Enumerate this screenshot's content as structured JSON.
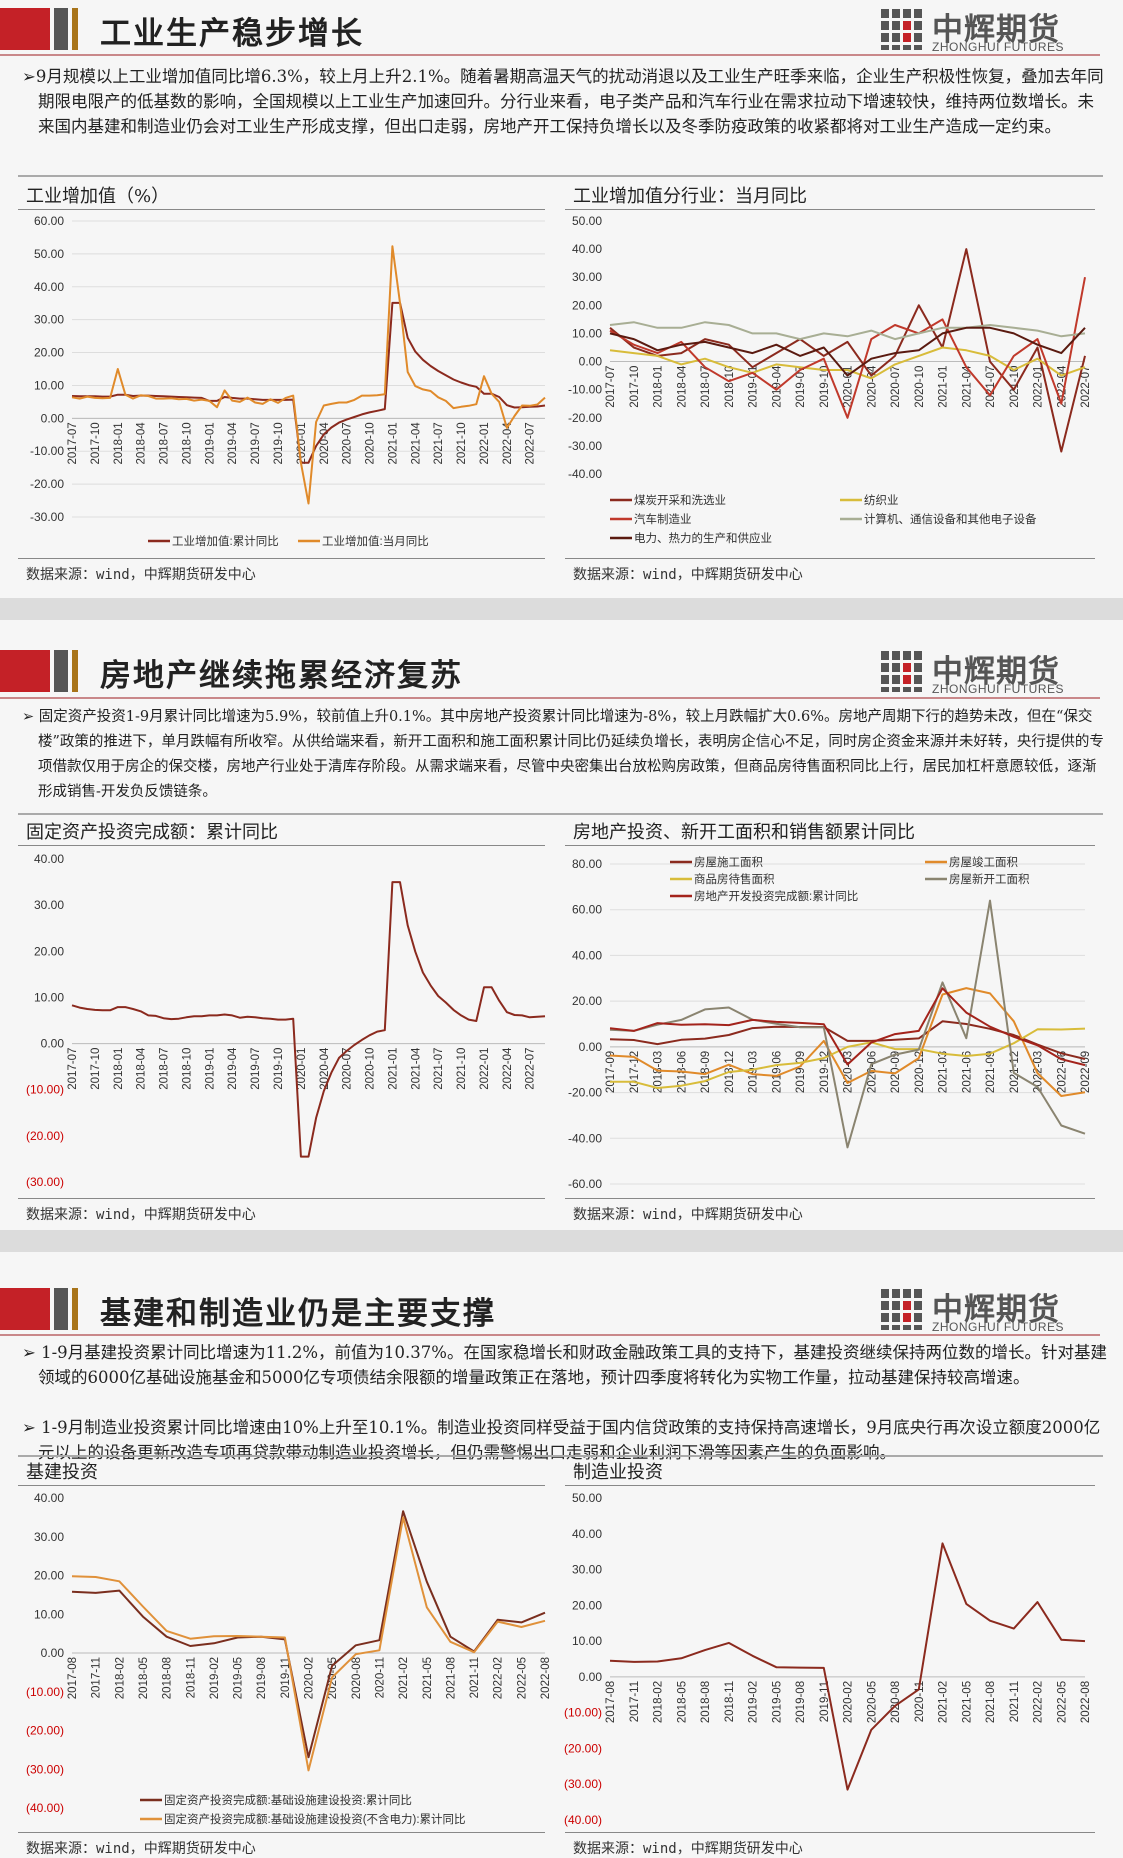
{
  "logo": {
    "cn": "中辉期货",
    "en": "ZHONGHUI FUTURES"
  },
  "footer_source": "数据来源：wind，中辉期货研发中心",
  "sections": [
    {
      "title": "工业生产稳步增长",
      "paragraphs": [
        "➢9月规模以上工业增加值同比增6.3%，较上月上升2.1%。随着暑期高温天气的扰动消退以及工业生产旺季来临，企业生产积极性恢复，叠加去年同期限电限产的低基数的影响，全国规模以上工业生产加速回升。分行业来看，电子类产品和汽车行业在需求拉动下增速较快，维持两位数增长。未来国内基建和制造业仍会对工业生产形成支撑，但出口走弱，房地产开工保持负增长以及冬季防疫政策的收紧都将对工业生产造成一定约束。"
      ]
    },
    {
      "title": "房地产继续拖累经济复苏",
      "paragraphs": [
        "➢ 固定资产投资1-9月累计同比增速为5.9%，较前值上升0.1%。其中房地产投资累计同比增速为-8%，较上月跌幅扩大0.6%。房地产周期下行的趋势未改，但在“保交楼”政策的推进下，单月跌幅有所收窄。从供给端来看，新开工面积和施工面积累计同比仍延续负增长，表明房企信心不足，同时房企资金来源并未好转，央行提供的专项借款仅用于房企的保交楼，房地产行业处于清库存阶段。从需求端来看，尽管中央密集出台放松购房政策，但商品房待售面积同比上行，居民加杠杆意愿较低，逐渐形成销售-开发负反馈链条。"
      ]
    },
    {
      "title": "基建和制造业仍是主要支撑",
      "paragraphs": [
        "➢ 1-9月基建投资累计同比增速为11.2%，前值为10.37%。在国家稳增长和财政金融政策工具的支持下，基建投资继续保持两位数的增长。针对基建领域的6000亿基础设施基金和5000亿专项债结余限额的增量政策正在落地，预计四季度将转化为实物工作量，拉动基建保持较高增速。",
        "➢ 1-9月制造业投资累计同比增速由10%上升至10.1%。制造业投资同样受益于国内信贷政策的支持保持高速增长，9月底央行再次设立额度2000亿元以上的设备更新改造专项再贷款带动制造业投资增长，但仍需警惕出口走弱和企业利润下滑等因素产生的负面影响。"
      ]
    }
  ],
  "chart_data": [
    {
      "id": "c1",
      "type": "line",
      "title": "工业增加值（%）",
      "ylim": [
        -30,
        60
      ],
      "ystep": 10,
      "neg_style": "minus",
      "grid": true,
      "legend": "bottom",
      "x": [
        "2017-07",
        "2017-08",
        "2017-09",
        "2017-10",
        "2017-11",
        "2017-12",
        "2018-01",
        "2018-02",
        "2018-03",
        "2018-04",
        "2018-05",
        "2018-06",
        "2018-07",
        "2018-08",
        "2018-09",
        "2018-10",
        "2018-11",
        "2018-12",
        "2019-01",
        "2019-02",
        "2019-03",
        "2019-04",
        "2019-05",
        "2019-06",
        "2019-07",
        "2019-08",
        "2019-09",
        "2019-10",
        "2019-11",
        "2019-12",
        "2020-01",
        "2020-02",
        "2020-03",
        "2020-04",
        "2020-05",
        "2020-06",
        "2020-07",
        "2020-08",
        "2020-09",
        "2020-10",
        "2020-11",
        "2020-12",
        "2021-01",
        "2021-02",
        "2021-03",
        "2021-04",
        "2021-05",
        "2021-06",
        "2021-07",
        "2021-08",
        "2021-09",
        "2021-10",
        "2021-11",
        "2021-12",
        "2022-01",
        "2022-02",
        "2022-03",
        "2022-04",
        "2022-05",
        "2022-06",
        "2022-07",
        "2022-08",
        "2022-09"
      ],
      "tick_every": 3,
      "series": [
        {
          "name": "工业增加值:累计同比",
          "color": "#8b2a1e",
          "values": [
            6.8,
            6.7,
            6.7,
            6.7,
            6.6,
            6.6,
            7.2,
            7.2,
            6.8,
            6.9,
            6.9,
            6.8,
            6.7,
            6.6,
            6.5,
            6.4,
            6.3,
            6.2,
            5.3,
            5.3,
            6.5,
            6.2,
            6.0,
            6.0,
            5.8,
            5.6,
            5.6,
            5.6,
            5.6,
            5.7,
            -13.5,
            -13.5,
            -8.4,
            -4.9,
            -2.8,
            -1.3,
            -0.4,
            0.4,
            1.2,
            1.8,
            2.3,
            2.8,
            35.1,
            35.1,
            24.5,
            20.3,
            17.8,
            15.9,
            14.4,
            13.1,
            11.8,
            10.9,
            10.1,
            9.6,
            7.5,
            7.5,
            6.5,
            4.0,
            3.3,
            3.4,
            3.5,
            3.6,
            3.9
          ]
        },
        {
          "name": "工业增加值:当月同比",
          "color": "#e08a2a",
          "values": [
            6.4,
            6.0,
            6.6,
            6.2,
            6.1,
            6.2,
            15.0,
            7.2,
            6.0,
            7.0,
            6.8,
            6.0,
            6.0,
            6.1,
            5.8,
            5.9,
            5.4,
            5.7,
            5.3,
            3.4,
            8.5,
            5.4,
            5.0,
            6.3,
            4.8,
            4.4,
            5.8,
            4.7,
            6.2,
            6.9,
            -13.5,
            -25.9,
            -1.1,
            3.9,
            4.4,
            4.8,
            4.8,
            5.6,
            6.9,
            6.9,
            7.0,
            7.3,
            52.3,
            35.1,
            14.1,
            9.8,
            8.8,
            8.3,
            6.4,
            5.3,
            3.1,
            3.5,
            3.8,
            4.3,
            12.8,
            7.5,
            5.0,
            -2.9,
            0.7,
            3.9,
            3.8,
            4.2,
            6.3
          ]
        }
      ]
    },
    {
      "id": "c2",
      "type": "line",
      "title": "工业增加值分行业：当月同比",
      "ylim": [
        -40,
        50
      ],
      "ystep": 10,
      "neg_style": "minus",
      "grid": false,
      "legend": "bottom",
      "x": [
        "2017-07",
        "2017-10",
        "2018-01",
        "2018-04",
        "2018-07",
        "2018-10",
        "2019-01",
        "2019-04",
        "2019-07",
        "2019-10",
        "2020-01",
        "2020-04",
        "2020-07",
        "2020-10",
        "2021-01",
        "2021-04",
        "2021-07",
        "2021-10",
        "2022-01",
        "2022-04",
        "2022-07"
      ],
      "tick_every": 1,
      "series": [
        {
          "name": "煤炭开采和洗选业",
          "color": "#8b2a1e",
          "values": [
            12,
            5,
            2,
            3,
            8,
            6,
            -2,
            3,
            8,
            2,
            7,
            -5,
            2,
            20,
            5,
            40,
            0,
            -10,
            5,
            -32,
            2
          ]
        },
        {
          "name": "纺织业",
          "color": "#d8bc3a",
          "values": [
            4,
            3,
            2,
            -1,
            1,
            -2,
            -4,
            -1,
            -2,
            -3,
            -3,
            -6,
            -1,
            2,
            5,
            4,
            2,
            -3,
            1,
            -5,
            -2
          ]
        },
        {
          "name": "汽车制造业",
          "color": "#c0392b",
          "values": [
            11,
            6,
            3,
            7,
            -2,
            -7,
            -4,
            -10,
            -3,
            1,
            -20,
            8,
            13,
            10,
            15,
            -2,
            -12,
            2,
            8,
            -15,
            30
          ]
        },
        {
          "name": "计算机、通信设备和其他电子设备",
          "color": "#a8ae94",
          "values": [
            13,
            14,
            12,
            12,
            14,
            13,
            10,
            10,
            8,
            10,
            9,
            11,
            8,
            10,
            12,
            12,
            13,
            12,
            11,
            9,
            10
          ]
        },
        {
          "name": "电力、热力的生产和供应业",
          "color": "#5a1a10",
          "values": [
            10,
            8,
            4,
            6,
            7,
            5,
            3,
            6,
            2,
            5,
            -5,
            1,
            3,
            4,
            10,
            12,
            12,
            10,
            6,
            3,
            12
          ]
        }
      ]
    },
    {
      "id": "c3",
      "type": "line",
      "title": "固定资产投资完成额：累计同比",
      "ylim": [
        -30,
        40
      ],
      "ystep": 10,
      "neg_style": "paren",
      "grid": false,
      "legend": "none",
      "x": [
        "2017-07",
        "2017-08",
        "2017-09",
        "2017-10",
        "2017-11",
        "2017-12",
        "2018-01",
        "2018-02",
        "2018-03",
        "2018-04",
        "2018-05",
        "2018-06",
        "2018-07",
        "2018-08",
        "2018-09",
        "2018-10",
        "2018-11",
        "2018-12",
        "2019-01",
        "2019-02",
        "2019-03",
        "2019-04",
        "2019-05",
        "2019-06",
        "2019-07",
        "2019-08",
        "2019-09",
        "2019-10",
        "2019-11",
        "2019-12",
        "2020-01",
        "2020-02",
        "2020-03",
        "2020-04",
        "2020-05",
        "2020-06",
        "2020-07",
        "2020-08",
        "2020-09",
        "2020-10",
        "2020-11",
        "2020-12",
        "2021-01",
        "2021-02",
        "2021-03",
        "2021-04",
        "2021-05",
        "2021-06",
        "2021-07",
        "2021-08",
        "2021-09",
        "2021-10",
        "2021-11",
        "2021-12",
        "2022-01",
        "2022-02",
        "2022-03",
        "2022-04",
        "2022-05",
        "2022-06",
        "2022-07",
        "2022-08",
        "2022-09"
      ],
      "tick_every": 3,
      "series": [
        {
          "color": "#8b2a1e",
          "values": [
            8.3,
            7.8,
            7.5,
            7.3,
            7.2,
            7.2,
            7.9,
            7.9,
            7.5,
            7.0,
            6.1,
            6.0,
            5.5,
            5.3,
            5.4,
            5.7,
            5.9,
            5.9,
            6.1,
            6.1,
            6.3,
            6.1,
            5.6,
            5.8,
            5.7,
            5.5,
            5.4,
            5.2,
            5.2,
            5.4,
            -24.5,
            -24.5,
            -16.1,
            -10.3,
            -6.3,
            -3.1,
            -1.6,
            -0.3,
            0.8,
            1.8,
            2.6,
            2.9,
            35.0,
            35.0,
            25.6,
            19.9,
            15.4,
            12.6,
            10.3,
            8.9,
            7.3,
            6.1,
            5.2,
            4.9,
            12.2,
            12.2,
            9.3,
            6.8,
            6.2,
            6.1,
            5.7,
            5.8,
            5.9
          ]
        }
      ]
    },
    {
      "id": "c4",
      "type": "line",
      "title": "房地产投资、新开工面积和销售额累计同比",
      "ylim": [
        -60,
        80
      ],
      "ystep": 20,
      "neg_style": "minus",
      "grid": true,
      "legend": "top",
      "x": [
        "2017-09",
        "2017-12",
        "2018-03",
        "2018-06",
        "2018-09",
        "2018-12",
        "2019-03",
        "2019-06",
        "2019-09",
        "2019-12",
        "2020-03",
        "2020-06",
        "2020-09",
        "2020-12",
        "2021-03",
        "2021-06",
        "2021-09",
        "2021-12",
        "2022-03",
        "2022-06",
        "2022-09"
      ],
      "tick_every": 1,
      "series": [
        {
          "name": "房屋施工面积",
          "color": "#8b2a1e",
          "values": [
            3.3,
            3.0,
            1.2,
            3.1,
            3.6,
            5.2,
            8.2,
            8.8,
            8.7,
            8.7,
            2.6,
            2.6,
            3.1,
            3.7,
            11.2,
            10.0,
            7.9,
            5.2,
            1.0,
            -2.8,
            -5.3
          ]
        },
        {
          "name": "房屋竣工面积",
          "color": "#e08a2a",
          "values": [
            -3.8,
            -4.4,
            -10.4,
            -10.8,
            -11.9,
            -7.8,
            -11.9,
            -12.7,
            -8.6,
            2.6,
            -15.8,
            -10.5,
            -11.6,
            -4.9,
            22.9,
            25.7,
            23.4,
            11.2,
            -11.5,
            -21.5,
            -19.9
          ]
        },
        {
          "name": "商品房待售面积",
          "color": "#d8bc3a",
          "values": [
            -15.3,
            -15.3,
            -18,
            -17,
            -15,
            -11,
            -10,
            -8,
            -7,
            -4.9,
            0,
            2,
            -1,
            -1,
            -3,
            -4,
            -3,
            1.6,
            7.7,
            7.6,
            8.0
          ]
        },
        {
          "name": "房屋新开工面积",
          "color": "#8a8470",
          "values": [
            7.5,
            7.0,
            9.7,
            11.8,
            16.4,
            17.2,
            11.9,
            10.1,
            8.6,
            8.5,
            -44.0,
            -7.6,
            -3.4,
            -1.2,
            28.2,
            3.8,
            64.0,
            -11.4,
            -17.5,
            -34.4,
            -38.0
          ]
        },
        {
          "name": "房地产开发投资完成额:累计同比",
          "color": "#a3231b",
          "values": [
            8.1,
            7.0,
            10.4,
            9.7,
            9.9,
            9.5,
            11.8,
            10.9,
            10.5,
            9.9,
            -7.7,
            1.9,
            5.6,
            7.0,
            25.6,
            15.0,
            8.8,
            4.4,
            0.7,
            -5.4,
            -8.0
          ]
        }
      ]
    },
    {
      "id": "c5",
      "type": "line",
      "title": "基建投资",
      "ylim": [
        -40,
        40
      ],
      "ystep": 10,
      "neg_style": "paren",
      "grid": false,
      "legend": "bottom-inside",
      "x": [
        "2017-08",
        "2017-11",
        "2018-02",
        "2018-05",
        "2018-08",
        "2018-11",
        "2019-02",
        "2019-05",
        "2019-08",
        "2019-11",
        "2020-02",
        "2020-05",
        "2020-08",
        "2020-11",
        "2021-02",
        "2021-05",
        "2021-08",
        "2021-11",
        "2022-02",
        "2022-05",
        "2022-08"
      ],
      "tick_every": 1,
      "series": [
        {
          "name": "固定资产投资完成额:基础设施建设投资:累计同比",
          "color": "#7a2e1e",
          "values": [
            15.8,
            15.5,
            16.1,
            9.4,
            4.2,
            1.8,
            2.5,
            4.0,
            4.2,
            3.5,
            -26.9,
            -3.3,
            2.0,
            3.3,
            36.6,
            18.4,
            4.2,
            0.4,
            8.6,
            7.9,
            10.4
          ]
        },
        {
          "name": "固定资产投资完成额:基础设施建设投资(不含电力):累计同比",
          "color": "#e0913a",
          "values": [
            19.8,
            19.6,
            18.5,
            12.0,
            5.7,
            3.7,
            4.3,
            4.4,
            4.2,
            4.0,
            -30.3,
            -6.3,
            -0.3,
            0.7,
            35.0,
            11.8,
            2.9,
            0.2,
            8.1,
            6.7,
            8.3
          ]
        }
      ]
    },
    {
      "id": "c6",
      "type": "line",
      "title": "制造业投资",
      "ylim": [
        -40,
        50
      ],
      "ystep": 10,
      "neg_style": "paren",
      "grid": false,
      "legend": "none",
      "x": [
        "2017-08",
        "2017-11",
        "2018-02",
        "2018-05",
        "2018-08",
        "2018-11",
        "2019-02",
        "2019-05",
        "2019-08",
        "2019-11",
        "2020-02",
        "2020-05",
        "2020-08",
        "2020-11",
        "2021-02",
        "2021-05",
        "2021-08",
        "2021-11",
        "2022-02",
        "2022-05",
        "2022-08"
      ],
      "tick_every": 1,
      "series": [
        {
          "color": "#8b2a1e",
          "values": [
            4.5,
            4.2,
            4.3,
            5.2,
            7.5,
            9.5,
            5.9,
            2.7,
            2.6,
            2.5,
            -31.5,
            -14.8,
            -8.1,
            -3.5,
            37.3,
            20.4,
            15.7,
            13.5,
            20.9,
            10.4,
            10.0
          ]
        }
      ]
    }
  ]
}
